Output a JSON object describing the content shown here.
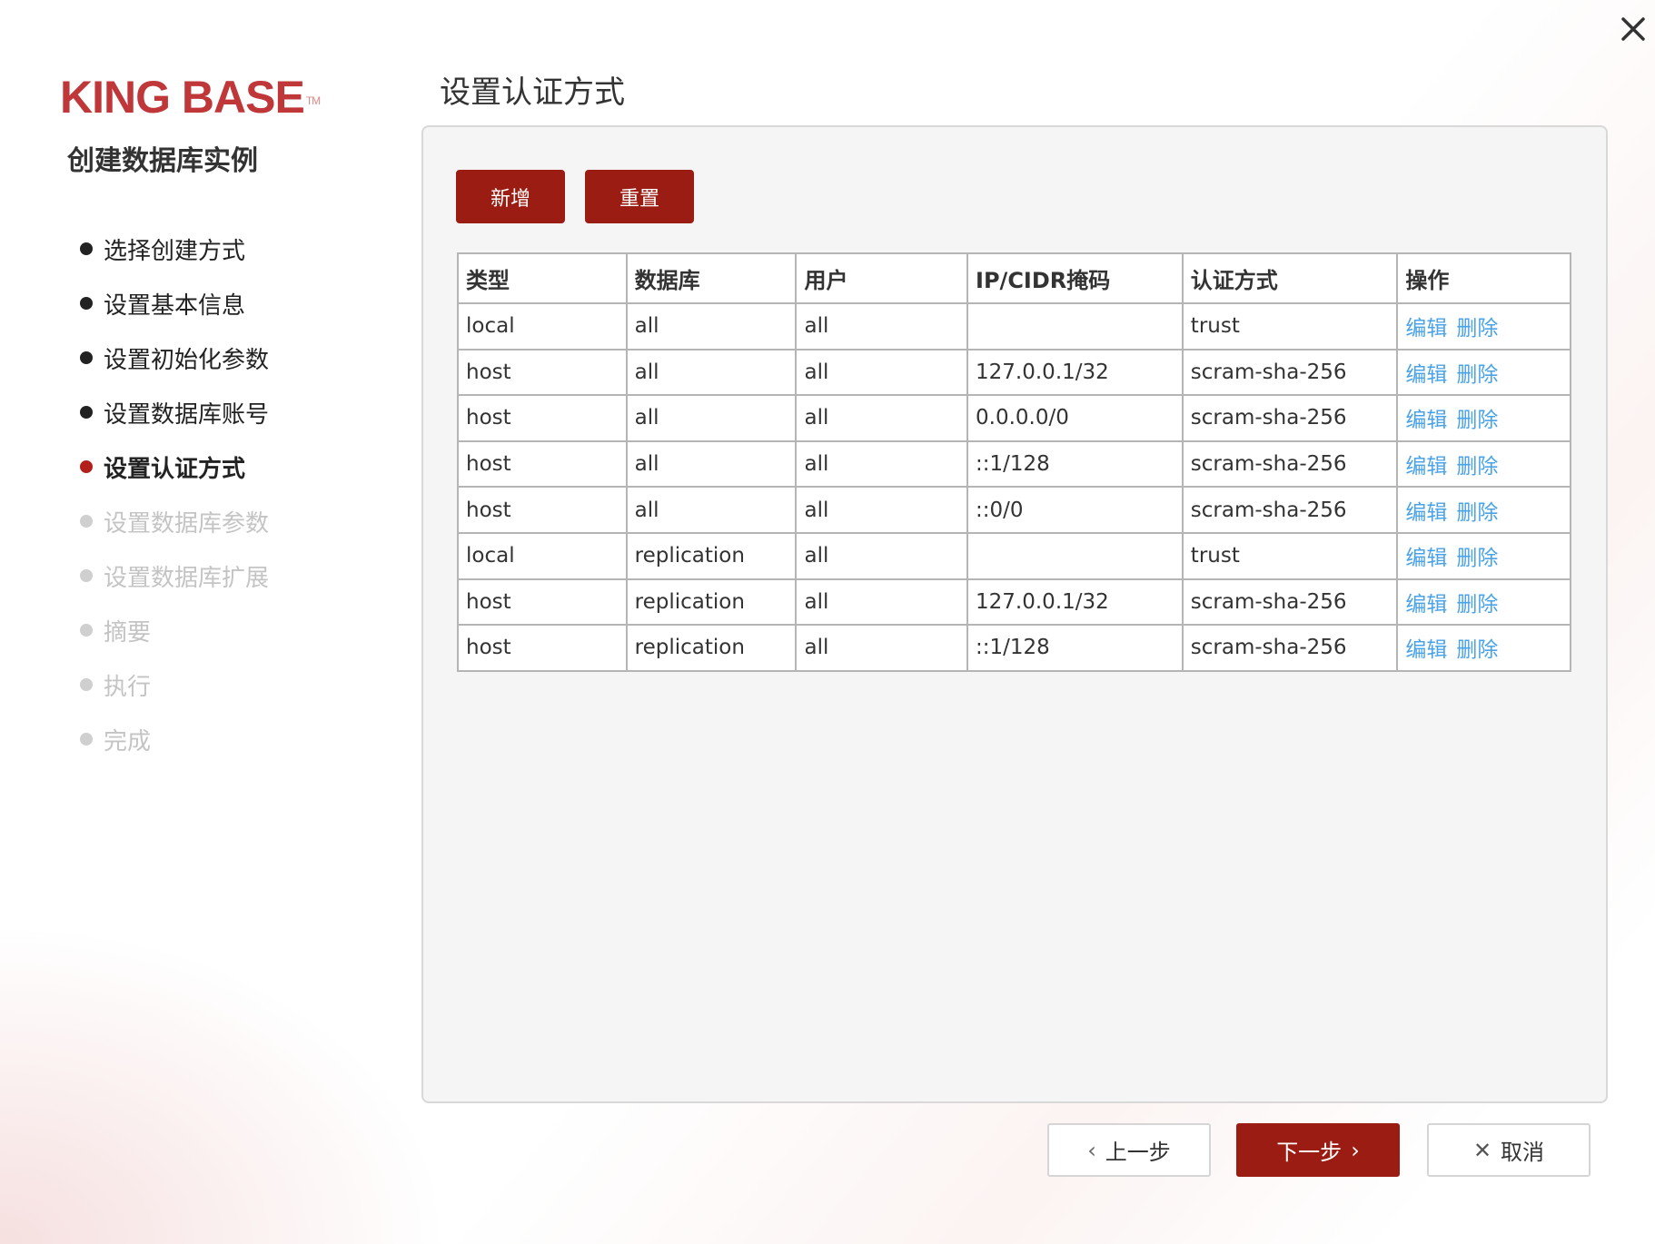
{
  "window": {
    "close_icon": "close-icon"
  },
  "brand": {
    "logo_text": "KING BASE",
    "logo_tm": "TM",
    "color": "#c0373a"
  },
  "wizard": {
    "subtitle": "创建数据库实例",
    "steps": [
      {
        "label": "选择创建方式",
        "state": "done"
      },
      {
        "label": "设置基本信息",
        "state": "done"
      },
      {
        "label": "设置初始化参数",
        "state": "done"
      },
      {
        "label": "设置数据库账号",
        "state": "done"
      },
      {
        "label": "设置认证方式",
        "state": "active"
      },
      {
        "label": "设置数据库参数",
        "state": "pending"
      },
      {
        "label": "设置数据库扩展",
        "state": "pending"
      },
      {
        "label": "摘要",
        "state": "pending"
      },
      {
        "label": "执行",
        "state": "pending"
      },
      {
        "label": "完成",
        "state": "pending"
      }
    ]
  },
  "main": {
    "title": "设置认证方式",
    "add_label": "新增",
    "reset_label": "重置",
    "table": {
      "headers": [
        "类型",
        "数据库",
        "用户",
        "IP/CIDR掩码",
        "认证方式",
        "操作"
      ],
      "edit_label": "编辑",
      "delete_label": "删除",
      "rows": [
        [
          "local",
          "all",
          "all",
          "",
          "trust"
        ],
        [
          "host",
          "all",
          "all",
          "127.0.0.1/32",
          "scram-sha-256"
        ],
        [
          "host",
          "all",
          "all",
          "0.0.0.0/0",
          "scram-sha-256"
        ],
        [
          "host",
          "all",
          "all",
          "::1/128",
          "scram-sha-256"
        ],
        [
          "host",
          "all",
          "all",
          "::0/0",
          "scram-sha-256"
        ],
        [
          "local",
          "replication",
          "all",
          "",
          "trust"
        ],
        [
          "host",
          "replication",
          "all",
          "127.0.0.1/32",
          "scram-sha-256"
        ],
        [
          "host",
          "replication",
          "all",
          "::1/128",
          "scram-sha-256"
        ]
      ]
    }
  },
  "footer": {
    "prev_label": "上一步",
    "next_label": "下一步",
    "cancel_label": "取消"
  },
  "colors": {
    "accent": "#9b1c12",
    "link": "#4aa3e8"
  }
}
